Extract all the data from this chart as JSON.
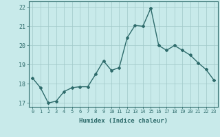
{
  "x": [
    0,
    1,
    2,
    3,
    4,
    5,
    6,
    7,
    8,
    9,
    10,
    11,
    12,
    13,
    14,
    15,
    16,
    17,
    18,
    19,
    20,
    21,
    22,
    23
  ],
  "y": [
    18.3,
    17.8,
    17.0,
    17.1,
    17.6,
    17.8,
    17.85,
    17.85,
    18.5,
    19.2,
    18.7,
    18.85,
    20.4,
    21.05,
    21.0,
    21.95,
    20.0,
    19.75,
    20.0,
    19.75,
    19.5,
    19.1,
    18.75,
    18.2
  ],
  "line_color": "#2e6b6b",
  "marker": "D",
  "marker_size": 2.0,
  "bg_color": "#c8eaea",
  "grid_color": "#a0c8c8",
  "xlabel": "Humidex (Indice chaleur)",
  "ylim": [
    16.8,
    22.3
  ],
  "xlim": [
    -0.5,
    23.5
  ],
  "yticks": [
    17,
    18,
    19,
    20,
    21,
    22
  ],
  "xticks": [
    0,
    1,
    2,
    3,
    4,
    5,
    6,
    7,
    8,
    9,
    10,
    11,
    12,
    13,
    14,
    15,
    16,
    17,
    18,
    19,
    20,
    21,
    22,
    23
  ],
  "tick_color": "#2e6b6b",
  "label_color": "#2e6b6b",
  "spine_color": "#2e6b6b",
  "linewidth": 1.0
}
